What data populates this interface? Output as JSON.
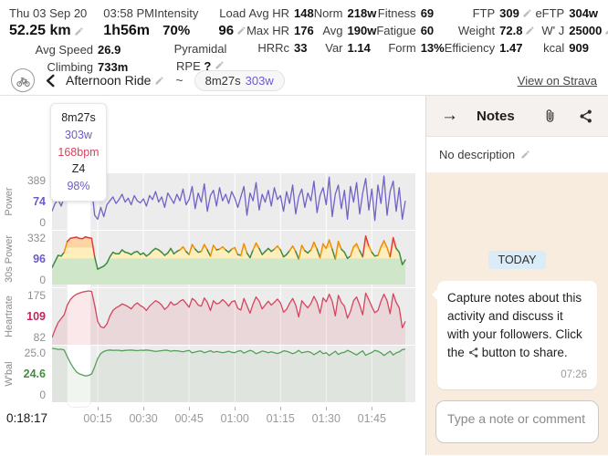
{
  "stats": {
    "date": "Thu 03 Sep 20",
    "time": "03:58 PM",
    "distance": "52.25 km",
    "duration": "1h56m",
    "avg_speed_label": "Avg Speed",
    "avg_speed": "26.9",
    "climbing_label": "Climbing",
    "climbing": "733m",
    "intensity_label": "Intensity",
    "intensity": "70%",
    "load_label": "Load",
    "load": "96",
    "profile": "Pyramidal",
    "rpe_label": "RPE",
    "rpe": "?",
    "cols": [
      {
        "rows": [
          {
            "l": "Avg HR",
            "v": "148"
          },
          {
            "l": "Max HR",
            "v": "176"
          },
          {
            "l": "HRRc",
            "v": "33"
          }
        ]
      },
      {
        "rows": [
          {
            "l": "Norm",
            "v": "218w"
          },
          {
            "l": "Avg",
            "v": "190w"
          },
          {
            "l": "Var",
            "v": "1.14"
          }
        ]
      },
      {
        "rows": [
          {
            "l": "Fitness",
            "v": "69"
          },
          {
            "l": "Fatigue",
            "v": "60"
          },
          {
            "l": "Form",
            "v": "13%"
          }
        ]
      },
      {
        "rows": [
          {
            "l": "FTP",
            "v": "309"
          },
          {
            "l": "Weight",
            "v": "72.8"
          },
          {
            "l": "Efficiency",
            "v": "1.47"
          }
        ]
      },
      {
        "rows": [
          {
            "l": "eFTP",
            "v": "304w"
          },
          {
            "l": "W' J",
            "v": "25000"
          },
          {
            "l": "kcal",
            "v": "909"
          }
        ]
      }
    ]
  },
  "title_bar": {
    "title": "Afternoon Ride",
    "separator": "~",
    "interval_pill": {
      "duration": "8m27s",
      "power": "303w"
    },
    "strava_link": "View on Strava"
  },
  "tooltip": {
    "duration": "8m27s",
    "power": "303w",
    "hr": "168bpm",
    "zone": "Z4",
    "pct": "98%"
  },
  "x_axis": {
    "duration_min": 116,
    "tick_minutes": [
      15,
      30,
      45,
      60,
      75,
      90,
      105
    ],
    "tick_labels": [
      "00:15",
      "00:30",
      "00:45",
      "01:00",
      "01:15",
      "01:30",
      "01:45"
    ],
    "cursor_time": "0:18:17"
  },
  "selection": {
    "start_min": 4.8,
    "end_min": 12.9
  },
  "chart_data": [
    {
      "type": "line",
      "name": "Power",
      "style": "plain",
      "color": "#7262c8",
      "ylim": [
        0,
        389
      ],
      "sample_interval_min": 1,
      "axis": {
        "top": "389",
        "cursor": "74",
        "bottom": "0"
      },
      "cursor_color": "#6a5bcc",
      "values": [
        120,
        180,
        210,
        160,
        230,
        295,
        310,
        300,
        315,
        290,
        305,
        320,
        298,
        303,
        90,
        60,
        150,
        80,
        170,
        200,
        230,
        180,
        210,
        250,
        190,
        220,
        170,
        240,
        200,
        185,
        215,
        160,
        240,
        210,
        270,
        190,
        230,
        150,
        260,
        220,
        180,
        250,
        200,
        290,
        170,
        210,
        310,
        140,
        260,
        190,
        330,
        120,
        240,
        280,
        160,
        300,
        200,
        250,
        180,
        270,
        220,
        150,
        230,
        310,
        90,
        260,
        200,
        340,
        130,
        250,
        190,
        280,
        160,
        300,
        210,
        240,
        120,
        270,
        180,
        320,
        100,
        230,
        290,
        150,
        260,
        200,
        350,
        110,
        240,
        300,
        170,
        380,
        80,
        250,
        320,
        140,
        280,
        60,
        310,
        190,
        340,
        100,
        260,
        370,
        130,
        290,
        50,
        320,
        180,
        389,
        90,
        270,
        350,
        120,
        300,
        60,
        200
      ]
    },
    {
      "type": "line",
      "name": "30s Power",
      "style": "zones",
      "ylim": [
        0,
        332
      ],
      "sample_interval_min": 1,
      "axis": {
        "top": "332",
        "cursor": "96",
        "bottom": "0"
      },
      "cursor_color": "#6a5bcc",
      "fill_bands": [
        {
          "upto": 170,
          "color": "#cfe7c8"
        },
        {
          "upto": 240,
          "color": "#fdeebb"
        },
        {
          "upto": 300,
          "color": "#fbd6a4"
        },
        {
          "upto": 332,
          "color": "#f5b0a0"
        }
      ],
      "line_zones": [
        {
          "upto": 240,
          "color": "#3d8b40"
        },
        {
          "upto": 300,
          "color": "#ef8f00"
        },
        {
          "upto": 9999,
          "color": "#e23b3b"
        }
      ],
      "values": [
        110,
        150,
        190,
        185,
        210,
        280,
        300,
        305,
        308,
        300,
        298,
        310,
        305,
        300,
        180,
        100,
        110,
        120,
        140,
        180,
        210,
        200,
        200,
        225,
        210,
        205,
        195,
        210,
        215,
        195,
        205,
        185,
        200,
        220,
        235,
        225,
        210,
        190,
        205,
        235,
        200,
        215,
        225,
        245,
        215,
        195,
        260,
        230,
        210,
        215,
        260,
        225,
        185,
        255,
        225,
        230,
        245,
        225,
        210,
        230,
        240,
        195,
        190,
        265,
        205,
        175,
        225,
        270,
        235,
        195,
        215,
        235,
        215,
        230,
        250,
        225,
        180,
        195,
        220,
        250,
        215,
        165,
        255,
        220,
        205,
        225,
        275,
        230,
        175,
        265,
        235,
        290,
        230,
        165,
        280,
        230,
        210,
        170,
        185,
        245,
        265,
        220,
        180,
        315,
        250,
        210,
        185,
        190,
        245,
        285,
        240,
        180,
        305,
        235,
        210,
        130,
        160
      ]
    },
    {
      "type": "line",
      "name": "Heartrate",
      "style": "area",
      "color": "#d6455d",
      "fill": "rgba(214,69,93,0.12)",
      "ylim": [
        82,
        176
      ],
      "sample_interval_min": 1,
      "axis": {
        "top": "175",
        "cursor": "109",
        "bottom": "82"
      },
      "cursor_color": "#c2255c",
      "values": [
        90,
        105,
        118,
        125,
        132,
        150,
        160,
        166,
        170,
        172,
        174,
        175,
        176,
        175,
        150,
        120,
        110,
        108,
        115,
        130,
        140,
        145,
        148,
        152,
        150,
        147,
        143,
        150,
        154,
        149,
        146,
        140,
        148,
        153,
        158,
        155,
        150,
        142,
        147,
        156,
        150,
        152,
        157,
        160,
        153,
        146,
        162,
        158,
        150,
        148,
        163,
        155,
        140,
        158,
        152,
        154,
        160,
        155,
        148,
        156,
        158,
        144,
        141,
        162,
        149,
        135,
        152,
        165,
        157,
        143,
        150,
        157,
        150,
        155,
        161,
        154,
        137,
        142,
        153,
        162,
        150,
        128,
        158,
        151,
        145,
        153,
        166,
        155,
        135,
        163,
        156,
        170,
        157,
        130,
        168,
        155,
        148,
        126,
        138,
        158,
        165,
        150,
        132,
        172,
        160,
        147,
        136,
        140,
        157,
        170,
        158,
        134,
        171,
        155,
        145,
        108,
        120
      ]
    },
    {
      "type": "line",
      "name": "W'bal",
      "style": "area",
      "color": "#53a158",
      "fill": "rgba(110,160,110,0.10)",
      "ylim": [
        0,
        25000
      ],
      "sample_interval_min": 1,
      "axis": {
        "top": "25.0",
        "cursor": "24.6",
        "bottom": "0"
      },
      "cursor_color": "#3f8f3f",
      "values": [
        25000,
        24800,
        24500,
        24600,
        24200,
        21000,
        18000,
        15500,
        13500,
        12500,
        12000,
        11500,
        11800,
        12500,
        16000,
        20000,
        22500,
        23500,
        24000,
        24200,
        24000,
        24100,
        24000,
        23800,
        24000,
        24100,
        24200,
        24000,
        23900,
        24100,
        24000,
        24200,
        24000,
        23800,
        23500,
        23700,
        23900,
        24100,
        24000,
        23600,
        23900,
        23800,
        23600,
        23300,
        23700,
        24000,
        22800,
        23200,
        23600,
        23700,
        22900,
        23300,
        23900,
        23100,
        23500,
        23200,
        22900,
        23200,
        23600,
        23100,
        22900,
        23600,
        23900,
        22700,
        23400,
        24000,
        23500,
        22400,
        23000,
        23700,
        23400,
        22900,
        23300,
        22900,
        22500,
        23000,
        23800,
        23600,
        23100,
        22400,
        23000,
        24000,
        22800,
        23200,
        23500,
        23000,
        21900,
        22800,
        23800,
        22400,
        22900,
        21500,
        22500,
        23600,
        22000,
        22800,
        23100,
        24000,
        23400,
        22600,
        21800,
        22900,
        23800,
        21600,
        22400,
        23000,
        24000,
        23600,
        22800,
        21500,
        22600,
        23600,
        21800,
        22800,
        23300,
        24400,
        24600
      ]
    }
  ],
  "notes_panel": {
    "title": "Notes",
    "description": "No description",
    "today_label": "TODAY",
    "message": {
      "text_before": "Capture notes about this activity and discuss it with your followers. Click the",
      "text_after": "button to share.",
      "time": "07:26"
    },
    "input_placeholder": "Type a note or comment"
  },
  "colors": {
    "accent_purple": "#6a5bcc",
    "hr_red": "#d6455d",
    "wbal_green": "#3f8f3f",
    "chat_bg": "#f8ecdf",
    "today_bg": "#d9ecf7"
  }
}
